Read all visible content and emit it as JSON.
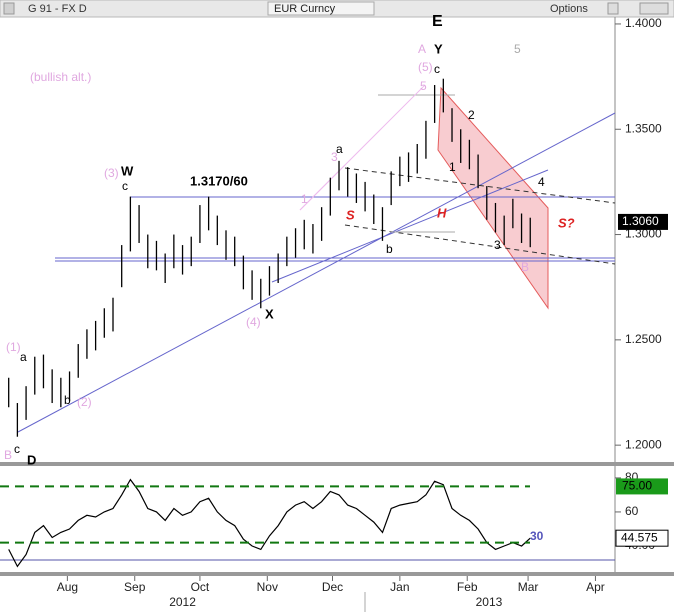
{
  "header": {
    "left": "G 91 - FX D",
    "center": "EUR Curncy",
    "right": "Options"
  },
  "chart_data": [
    {
      "type": "ohlc",
      "x": [
        4,
        8,
        12,
        16,
        20,
        24,
        28,
        32,
        36,
        40,
        44,
        48,
        52,
        56,
        60,
        64,
        68,
        72,
        76,
        80,
        84,
        88,
        92,
        96,
        100,
        104,
        108,
        112,
        116,
        120,
        124,
        128,
        132,
        136,
        140,
        144,
        148,
        152,
        156,
        160,
        164,
        168,
        172,
        176,
        180,
        184,
        188,
        192,
        196,
        200,
        204,
        208,
        212,
        216,
        220,
        224,
        228,
        232,
        236,
        240,
        244
      ],
      "high": [
        1.232,
        1.22,
        1.228,
        1.242,
        1.243,
        1.236,
        1.232,
        1.235,
        1.248,
        1.255,
        1.259,
        1.265,
        1.27,
        1.295,
        1.318,
        1.314,
        1.3,
        1.297,
        1.291,
        1.3,
        1.295,
        1.299,
        1.314,
        1.318,
        1.309,
        1.302,
        1.299,
        1.29,
        1.283,
        1.279,
        1.285,
        1.291,
        1.299,
        1.303,
        1.307,
        1.305,
        1.313,
        1.327,
        1.335,
        1.332,
        1.329,
        1.325,
        1.319,
        1.313,
        1.33,
        1.337,
        1.339,
        1.343,
        1.354,
        1.371,
        1.374,
        1.36,
        1.35,
        1.345,
        1.338,
        1.323,
        1.315,
        1.309,
        1.317,
        1.31,
        1.308
      ],
      "low": [
        1.218,
        1.204,
        1.212,
        1.224,
        1.227,
        1.22,
        1.218,
        1.221,
        1.232,
        1.241,
        1.245,
        1.251,
        1.254,
        1.275,
        1.292,
        1.296,
        1.284,
        1.283,
        1.277,
        1.284,
        1.281,
        1.285,
        1.296,
        1.302,
        1.295,
        1.288,
        1.285,
        1.274,
        1.269,
        1.265,
        1.271,
        1.277,
        1.285,
        1.289,
        1.293,
        1.291,
        1.297,
        1.309,
        1.321,
        1.318,
        1.315,
        1.311,
        1.305,
        1.297,
        1.314,
        1.323,
        1.325,
        1.329,
        1.336,
        1.353,
        1.358,
        1.344,
        1.334,
        1.331,
        1.322,
        1.307,
        1.301,
        1.295,
        1.303,
        1.296,
        1.294
      ],
      "color": "#000000",
      "xlim": [
        0,
        283
      ],
      "ylim": [
        1.192,
        1.4033
      ],
      "yticks": [
        {
          "value": 1.2,
          "label": "1.2000"
        },
        {
          "value": 1.25,
          "label": "1.2500"
        },
        {
          "value": 1.3,
          "label": "1.3000"
        },
        {
          "value": 1.35,
          "label": "1.3500"
        },
        {
          "value": 1.4,
          "label": "1.4000"
        }
      ],
      "last_price": {
        "value": 1.306,
        "label": "1.3060"
      },
      "annotations": [
        {
          "text": "(bullish alt.)",
          "color": "#e0a8e0"
        },
        {
          "text": "(3)",
          "color": "#e0a8e0"
        },
        {
          "text": "W",
          "color": "#000000"
        },
        {
          "text": "c",
          "color": "#000000"
        },
        {
          "text": "1.3170/60",
          "color": "#000000"
        },
        {
          "text": "3",
          "color": "#e0a8e0"
        },
        {
          "text": "a",
          "color": "#000000"
        },
        {
          "text": "1",
          "color": "#e0a8e0"
        },
        {
          "text": "S",
          "color": "#dd2222"
        },
        {
          "text": "H",
          "color": "#dd2222"
        },
        {
          "text": "b",
          "color": "#000000"
        },
        {
          "text": "X",
          "color": "#000000"
        },
        {
          "text": "(4)",
          "color": "#e0a8e0"
        },
        {
          "text": "(1)",
          "color": "#e0a8e0"
        },
        {
          "text": "a",
          "color": "#000000"
        },
        {
          "text": "b",
          "color": "#000000"
        },
        {
          "text": "(2)",
          "color": "#e0a8e0"
        },
        {
          "text": "c",
          "color": "#000000"
        },
        {
          "text": "B",
          "color": "#e0a8e0"
        },
        {
          "text": "D",
          "color": "#000000"
        },
        {
          "text": "E",
          "color": "#000000"
        },
        {
          "text": "A",
          "color": "#e0a8e0"
        },
        {
          "text": "Y",
          "color": "#000000"
        },
        {
          "text": "5",
          "color": "#aaaaaa"
        },
        {
          "text": "(5)",
          "color": "#e0a8e0"
        },
        {
          "text": "c",
          "color": "#000000"
        },
        {
          "text": "5",
          "color": "#e0a8e0"
        },
        {
          "text": "2",
          "color": "#000000"
        },
        {
          "text": "1",
          "color": "#000000"
        },
        {
          "text": "4",
          "color": "#000000"
        },
        {
          "text": "S?",
          "color": "#dd2222"
        },
        {
          "text": "3",
          "color": "#000000"
        },
        {
          "text": "B",
          "color": "#e0a8e0"
        }
      ]
    },
    {
      "type": "line",
      "series": [
        {
          "name": "RSI",
          "color": "#000000",
          "values": [
            38,
            28,
            35,
            48,
            52,
            45,
            48,
            50,
            55,
            58,
            57,
            60,
            62,
            70,
            79,
            72,
            62,
            60,
            55,
            62,
            58,
            60,
            66,
            68,
            60,
            55,
            52,
            44,
            40,
            38,
            46,
            52,
            60,
            64,
            66,
            62,
            66,
            72,
            70,
            64,
            62,
            58,
            54,
            48,
            62,
            64,
            65,
            66,
            70,
            78,
            76,
            62,
            58,
            55,
            50,
            42,
            38,
            40,
            42,
            40,
            44.575
          ],
          "value_labels_last": "44.575"
        }
      ],
      "ylim": [
        24.7,
        87
      ],
      "yticks": [
        {
          "value": 40,
          "label": "40.00"
        },
        60,
        80
      ],
      "bands": [
        {
          "value": 75,
          "label": "75.00"
        },
        {
          "value": 42
        }
      ],
      "band_color": "#117711",
      "annotation": {
        "text": "30",
        "color": "#5555bb"
      },
      "xticks": [
        {
          "value": 31,
          "label": "Aug"
        },
        {
          "value": 62,
          "label": "Sep"
        },
        {
          "value": 92,
          "label": "Oct"
        },
        {
          "value": 123,
          "label": "Nov"
        },
        {
          "value": 153,
          "label": "Dec"
        },
        {
          "value": 184,
          "label": "Jan"
        },
        {
          "value": 215,
          "label": "Feb"
        },
        {
          "value": 243,
          "label": "Mar"
        },
        {
          "value": 274,
          "label": "Apr"
        }
      ],
      "year_ticks": [
        {
          "value": 84,
          "label": "2012"
        },
        {
          "value": 225,
          "label": "2013"
        }
      ]
    }
  ]
}
